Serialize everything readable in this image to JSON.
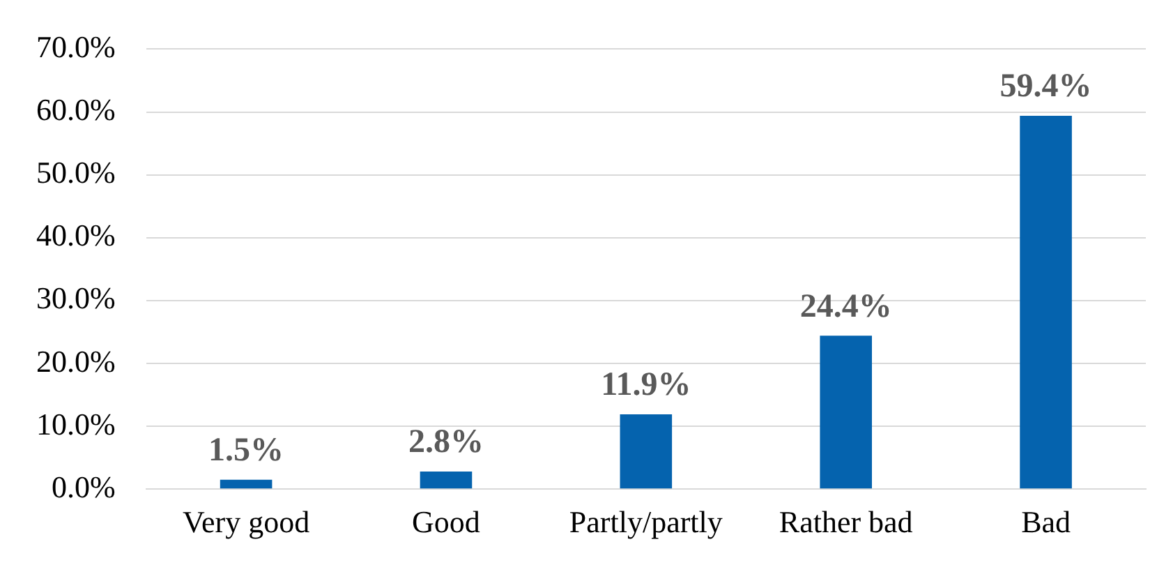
{
  "chart_data": {
    "type": "bar",
    "categories": [
      "Very good",
      "Good",
      "Partly/partly",
      "Rather bad",
      "Bad"
    ],
    "values": [
      1.5,
      2.8,
      11.9,
      24.4,
      59.4
    ],
    "value_labels": [
      "1.5%",
      "2.8%",
      "11.9%",
      "24.4%",
      "59.4%"
    ],
    "color": "#0563ae",
    "ylim": [
      0,
      70
    ],
    "yticks": [
      {
        "value": 0,
        "label": "0.0%"
      },
      {
        "value": 10,
        "label": "10.0%"
      },
      {
        "value": 20,
        "label": "20.0%"
      },
      {
        "value": 30,
        "label": "30.0%"
      },
      {
        "value": 40,
        "label": "40.0%"
      },
      {
        "value": 50,
        "label": "50.0%"
      },
      {
        "value": 60,
        "label": "60.0%"
      },
      {
        "value": 70,
        "label": "70.0%"
      }
    ],
    "grid": "y",
    "legend": false
  }
}
